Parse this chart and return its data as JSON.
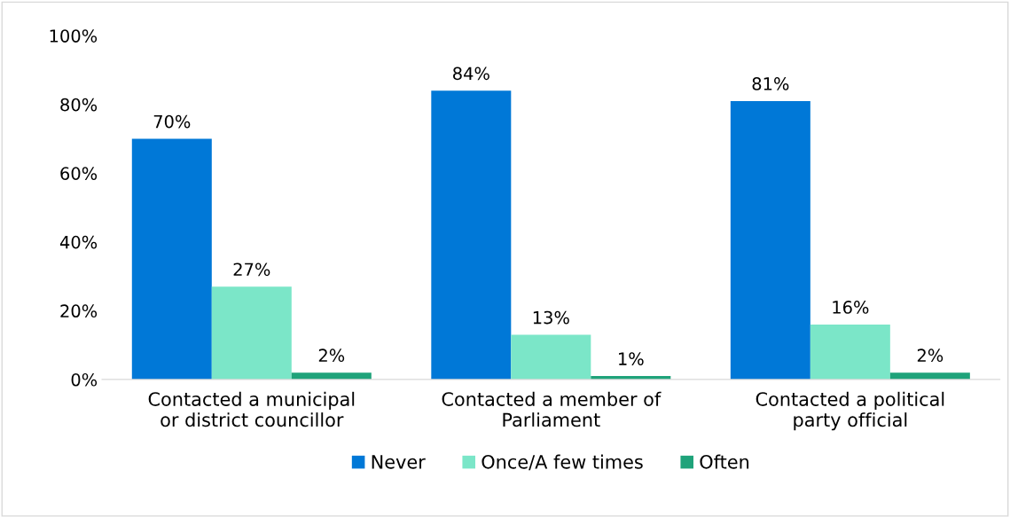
{
  "chart_data": {
    "type": "bar",
    "categories": [
      "Contacted a municipal\nor district councillor",
      "Contacted a member of\nParliament",
      "Contacted a political\nparty official"
    ],
    "series": [
      {
        "name": "Never",
        "color": "#0078d7",
        "values": [
          70,
          84,
          81
        ],
        "value_labels": [
          "70%",
          "84%",
          "81%"
        ]
      },
      {
        "name": "Once/A few times",
        "color": "#7be6c8",
        "values": [
          27,
          13,
          16
        ],
        "value_labels": [
          "27%",
          "13%",
          "16%"
        ]
      },
      {
        "name": "Often",
        "color": "#1fa37a",
        "values": [
          2,
          1,
          2
        ],
        "value_labels": [
          "2%",
          "1%",
          "2%"
        ]
      }
    ],
    "ylim": [
      0,
      100
    ],
    "yticks": [
      {
        "value": 0,
        "label": "0%"
      },
      {
        "value": 20,
        "label": "20%"
      },
      {
        "value": 40,
        "label": "40%"
      },
      {
        "value": 60,
        "label": "60%"
      },
      {
        "value": 80,
        "label": "80%"
      },
      {
        "value": 100,
        "label": "100%"
      }
    ],
    "grid": false,
    "legend": "bottom"
  }
}
